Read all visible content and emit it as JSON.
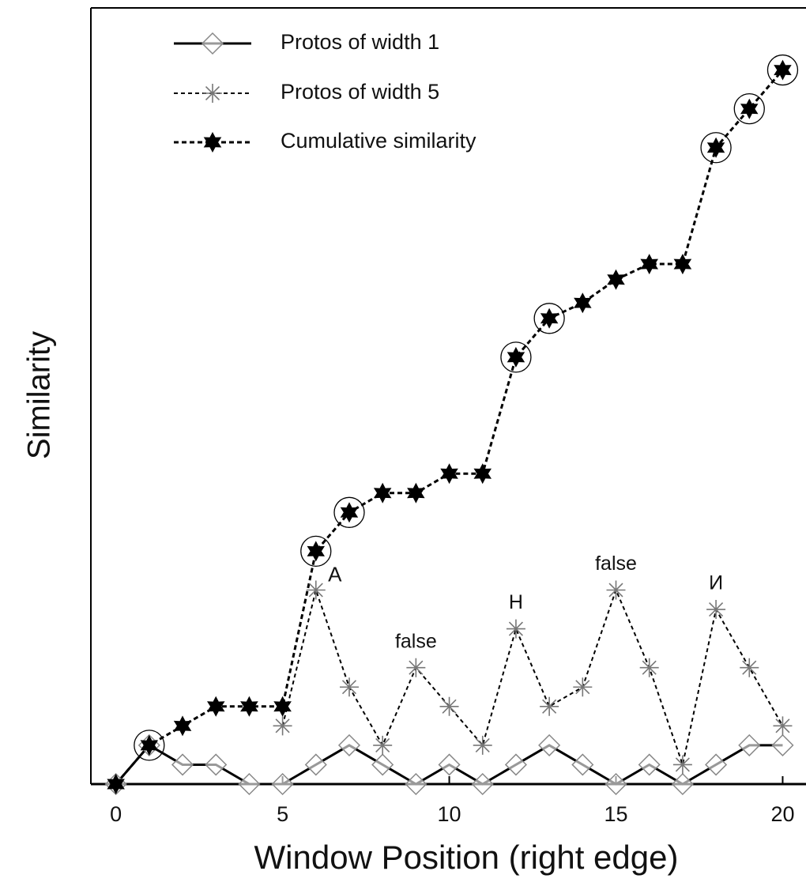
{
  "chart_data": {
    "type": "line",
    "x_label": "Window Position (right edge)",
    "y_label": "Similarity",
    "x": [
      0,
      1,
      2,
      3,
      4,
      5,
      6,
      7,
      8,
      9,
      10,
      11,
      12,
      13,
      14,
      15,
      16,
      17,
      18,
      19,
      20
    ],
    "xlim": [
      -0.75,
      20.7
    ],
    "xticks": [
      0,
      5,
      10,
      15,
      20
    ],
    "ylim": [
      0,
      20
    ],
    "legend": "upper-left",
    "series": [
      {
        "name": "Protos of width 1",
        "color": "#000000",
        "marker_color": "#888888",
        "marker": "diamond",
        "line": "solid",
        "values": [
          0,
          1,
          0.5,
          0.5,
          0,
          0,
          0.5,
          1,
          0.5,
          0,
          0.5,
          0,
          0.5,
          1,
          0.5,
          0,
          0.5,
          0,
          0.5,
          1,
          1
        ]
      },
      {
        "name": "Protos of width 5",
        "color": "#000000",
        "marker_color": "#777777",
        "marker": "asterisk",
        "line": "dashed",
        "values": [
          null,
          null,
          null,
          null,
          null,
          1.5,
          5,
          2.5,
          1,
          3,
          2,
          1,
          4,
          2,
          2.5,
          5,
          3,
          0.5,
          4.5,
          3,
          1.5
        ]
      },
      {
        "name": "Cumulative similarity",
        "color": "#000000",
        "marker_color": "#000000",
        "marker": "star",
        "line": "dashed-bold",
        "values": [
          0,
          1,
          1.5,
          2,
          2,
          2,
          6,
          7,
          7.5,
          7.5,
          8,
          8,
          11,
          12,
          12.4,
          13,
          13.4,
          13.4,
          16.4,
          17.4,
          18.4
        ],
        "circled": [
          false,
          true,
          false,
          false,
          false,
          false,
          true,
          true,
          false,
          false,
          false,
          false,
          true,
          true,
          false,
          false,
          false,
          false,
          true,
          true,
          true
        ]
      }
    ],
    "annotations": [
      {
        "text": "A",
        "x": 6
      },
      {
        "text": "false",
        "x": 9
      },
      {
        "text": "H",
        "x": 12
      },
      {
        "text": "false",
        "x": 15
      },
      {
        "text": "И",
        "x": 18
      }
    ]
  }
}
